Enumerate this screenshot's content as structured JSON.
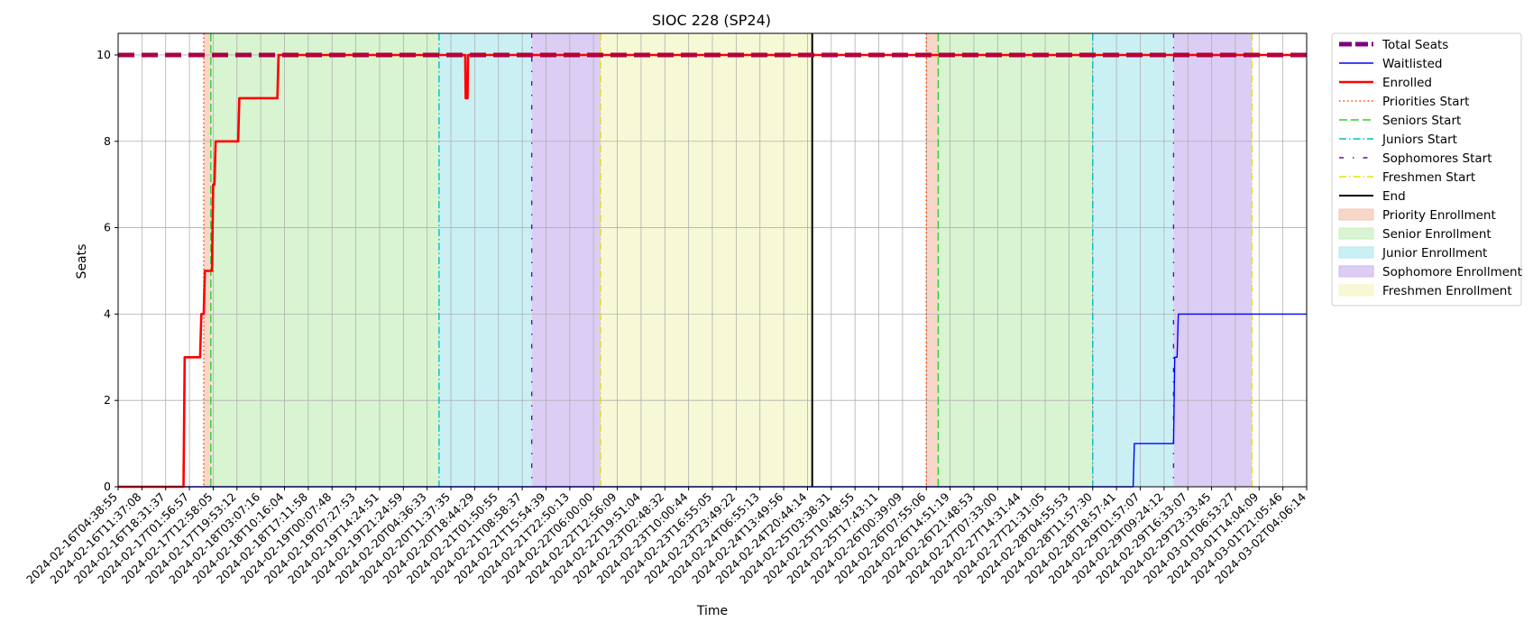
{
  "chart_data": {
    "type": "line",
    "title": "SIOC 228 (SP24)",
    "xlabel": "Time",
    "ylabel": "Seats",
    "ylim": [
      0,
      10.5
    ],
    "yticks": [
      0,
      2,
      4,
      6,
      8,
      10
    ],
    "grid": true,
    "legend_position": "outside right",
    "x_tick_labels": [
      "2024-02-16T04:38:55",
      "2024-02-16T11:37:08",
      "2024-02-16T18:31:37",
      "2024-02-17T01:56:57",
      "2024-02-17T12:58:05",
      "2024-02-17T19:53:12",
      "2024-02-18T03:07:16",
      "2024-02-18T10:16:04",
      "2024-02-18T17:11:58",
      "2024-02-19T00:07:48",
      "2024-02-19T07:27:53",
      "2024-02-19T14:24:51",
      "2024-02-19T21:24:59",
      "2024-02-20T04:36:33",
      "2024-02-20T11:37:35",
      "2024-02-20T18:44:29",
      "2024-02-21T01:50:55",
      "2024-02-21T08:58:37",
      "2024-02-21T15:54:39",
      "2024-02-21T22:50:13",
      "2024-02-22T06:00:00",
      "2024-02-22T12:56:09",
      "2024-02-22T19:51:04",
      "2024-02-23T02:48:32",
      "2024-02-23T10:00:44",
      "2024-02-23T16:55:05",
      "2024-02-23T23:49:22",
      "2024-02-24T06:55:13",
      "2024-02-24T13:49:56",
      "2024-02-24T20:44:14",
      "2024-02-25T03:38:31",
      "2024-02-25T10:48:55",
      "2024-02-25T17:43:11",
      "2024-02-26T00:39:09",
      "2024-02-26T07:55:06",
      "2024-02-26T14:51:19",
      "2024-02-26T21:48:53",
      "2024-02-27T07:33:00",
      "2024-02-27T14:31:44",
      "2024-02-27T21:31:05",
      "2024-02-28T04:55:53",
      "2024-02-28T11:57:30",
      "2024-02-28T18:57:41",
      "2024-02-29T01:57:07",
      "2024-02-29T09:24:12",
      "2024-02-29T16:33:07",
      "2024-02-29T23:33:45",
      "2024-03-01T06:53:27",
      "2024-03-01T14:04:09",
      "2024-03-01T21:05:46",
      "2024-03-02T04:06:14"
    ],
    "series": [
      {
        "name": "Total Seats",
        "color": "#800080",
        "style": "dashed",
        "points": [
          [
            0,
            10
          ],
          [
            50,
            10
          ]
        ]
      },
      {
        "name": "Waitlisted",
        "color": "#0000ff",
        "style": "solid",
        "points": [
          [
            0,
            0
          ],
          [
            42.7,
            0
          ],
          [
            42.75,
            1
          ],
          [
            44.4,
            1
          ],
          [
            44.45,
            3
          ],
          [
            44.55,
            3
          ],
          [
            44.6,
            4
          ],
          [
            50,
            4
          ]
        ]
      },
      {
        "name": "Enrolled",
        "color": "#ff0000",
        "style": "solid",
        "points": [
          [
            0,
            0
          ],
          [
            2.75,
            0
          ],
          [
            2.8,
            3
          ],
          [
            3.45,
            3
          ],
          [
            3.5,
            4
          ],
          [
            3.6,
            4
          ],
          [
            3.65,
            5
          ],
          [
            3.95,
            5
          ],
          [
            4.0,
            7
          ],
          [
            4.05,
            7
          ],
          [
            4.1,
            8
          ],
          [
            5.05,
            8
          ],
          [
            5.1,
            9
          ],
          [
            6.7,
            9
          ],
          [
            6.75,
            10
          ],
          [
            14.6,
            10
          ],
          [
            14.62,
            9
          ],
          [
            14.7,
            9
          ],
          [
            14.72,
            10
          ],
          [
            50,
            10
          ]
        ]
      }
    ],
    "markers": [
      {
        "name": "Priorities Start",
        "color": "#ff4500",
        "style": "dotted",
        "x": [
          3.6,
          34.0
        ]
      },
      {
        "name": "Seniors Start",
        "color": "#32cd32",
        "style": "dashed",
        "x": [
          3.9,
          34.5
        ]
      },
      {
        "name": "Juniors Start",
        "color": "#00bfbf",
        "style": "dashdot",
        "x": [
          13.5,
          41.0
        ]
      },
      {
        "name": "Sophomores Start",
        "color": "#6a0dad",
        "style": "loose-dashdot",
        "x": [
          17.4,
          44.4
        ]
      },
      {
        "name": "Freshmen Start",
        "color": "#e5e500",
        "style": "dashdot",
        "x": [
          20.3,
          47.7
        ]
      },
      {
        "name": "End",
        "color": "#000000",
        "style": "solid",
        "x": [
          29.2
        ]
      }
    ],
    "phases": [
      {
        "name": "Priority Enrollment",
        "color": "#f4c6b2",
        "ranges": [
          [
            3.6,
            3.9
          ],
          [
            34.0,
            34.5
          ]
        ]
      },
      {
        "name": "Senior Enrollment",
        "color": "#c8efbd",
        "ranges": [
          [
            3.9,
            13.5
          ],
          [
            34.5,
            41.0
          ]
        ]
      },
      {
        "name": "Junior Enrollment",
        "color": "#b3e9ef",
        "ranges": [
          [
            13.5,
            17.4
          ],
          [
            41.0,
            44.4
          ]
        ]
      },
      {
        "name": "Sophomore Enrollment",
        "color": "#cdb8f0",
        "ranges": [
          [
            17.4,
            20.3
          ],
          [
            44.4,
            47.7
          ]
        ]
      },
      {
        "name": "Freshmen Enrollment",
        "color": "#f4f6c4",
        "ranges": [
          [
            20.3,
            29.2
          ]
        ]
      }
    ]
  }
}
